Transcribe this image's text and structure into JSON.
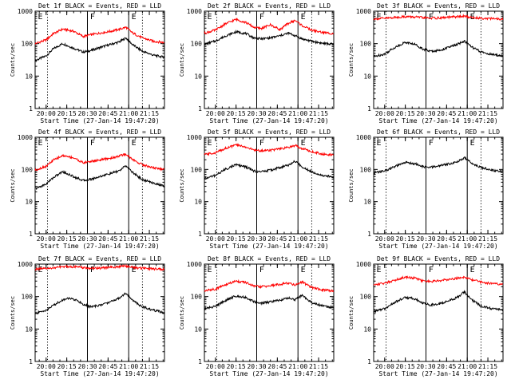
{
  "figure": {
    "x_axis_label": "Start Time (27-Jan-14 19:47:20)",
    "y_axis_label": "Counts/sec",
    "colors": {
      "events": "#000000",
      "lld": "#ff0000",
      "axes": "#000000"
    }
  },
  "chart_data": [
    {
      "type": "line",
      "title": "Det 1f BLACK = Events, RED = LLD",
      "xlim": [
        "19:52",
        "21:26"
      ],
      "ylim": [
        1,
        1000
      ],
      "yscale": "log",
      "grid": false,
      "legend": "none",
      "x_ticks": [
        "20:00",
        "20:15",
        "20:30",
        "20:45",
        "21:00",
        "21:15"
      ],
      "y_ticks": [
        "1",
        "10",
        "100",
        "1000"
      ],
      "dotted_lines": [
        "20:01",
        "21:10"
      ],
      "solid_lines": [
        "20:30",
        "21:00"
      ],
      "region_tags": [
        {
          "x": "19:54",
          "label": "E"
        },
        {
          "x": "20:32",
          "label": "F"
        },
        {
          "x": "21:02",
          "label": "E"
        }
      ],
      "x": [
        "19:52",
        "20:00",
        "20:05",
        "20:12",
        "20:20",
        "20:27",
        "20:33",
        "20:40",
        "20:47",
        "20:53",
        "20:58",
        "21:03",
        "21:10",
        "21:18",
        "21:26"
      ],
      "series": [
        {
          "name": "Events",
          "values": [
            30,
            42,
            68,
            100,
            72,
            55,
            62,
            78,
            95,
            112,
            150,
            92,
            58,
            44,
            38
          ]
        },
        {
          "name": "LLD",
          "values": [
            100,
            130,
            200,
            280,
            240,
            165,
            190,
            215,
            240,
            275,
            320,
            210,
            150,
            118,
            108
          ]
        }
      ]
    },
    {
      "type": "line",
      "title": "Det 2f BLACK = Events, RED = LLD",
      "xlim": [
        "19:52",
        "21:26"
      ],
      "ylim": [
        1,
        1000
      ],
      "yscale": "log",
      "grid": false,
      "legend": "none",
      "x_ticks": [
        "20:00",
        "20:15",
        "20:30",
        "20:45",
        "21:00",
        "21:15"
      ],
      "y_ticks": [
        "1",
        "10",
        "100",
        "1000"
      ],
      "dotted_lines": [
        "20:01",
        "21:10"
      ],
      "solid_lines": [
        "20:30",
        "21:00"
      ],
      "region_tags": [
        {
          "x": "19:54",
          "label": "E"
        },
        {
          "x": "20:32",
          "label": "F"
        },
        {
          "x": "21:02",
          "label": "E"
        }
      ],
      "x": [
        "19:52",
        "20:00",
        "20:07",
        "20:15",
        "20:22",
        "20:28",
        "20:33",
        "20:40",
        "20:47",
        "20:53",
        "20:58",
        "21:03",
        "21:10",
        "21:18",
        "21:26"
      ],
      "series": [
        {
          "name": "Events",
          "values": [
            95,
            120,
            170,
            230,
            205,
            150,
            140,
            150,
            175,
            210,
            175,
            140,
            118,
            102,
            95
          ]
        },
        {
          "name": "LLD",
          "values": [
            210,
            260,
            400,
            560,
            450,
            320,
            290,
            380,
            270,
            420,
            520,
            360,
            260,
            220,
            205
          ]
        }
      ]
    },
    {
      "type": "line",
      "title": "Det 3f BLACK = Events, RED = LLD",
      "xlim": [
        "19:52",
        "21:26"
      ],
      "ylim": [
        1,
        1000
      ],
      "yscale": "log",
      "grid": false,
      "legend": "none",
      "x_ticks": [
        "20:00",
        "20:15",
        "20:30",
        "20:45",
        "21:00",
        "21:15"
      ],
      "y_ticks": [
        "1",
        "10",
        "100",
        "1000"
      ],
      "dotted_lines": [
        "20:01",
        "21:10"
      ],
      "solid_lines": [
        "20:30",
        "21:00"
      ],
      "region_tags": [
        {
          "x": "19:54",
          "label": "E"
        },
        {
          "x": "20:32",
          "label": "F"
        },
        {
          "x": "21:02",
          "label": "E"
        }
      ],
      "x": [
        "19:52",
        "20:00",
        "20:07",
        "20:15",
        "20:22",
        "20:28",
        "20:33",
        "20:40",
        "20:47",
        "20:53",
        "20:58",
        "21:03",
        "21:10",
        "21:18",
        "21:26"
      ],
      "series": [
        {
          "name": "Events",
          "values": [
            40,
            48,
            75,
            110,
            95,
            68,
            58,
            62,
            78,
            95,
            120,
            80,
            55,
            46,
            42
          ]
        },
        {
          "name": "LLD",
          "values": [
            580,
            600,
            640,
            680,
            660,
            630,
            610,
            620,
            650,
            680,
            700,
            640,
            610,
            590,
            560
          ]
        }
      ]
    },
    {
      "type": "line",
      "title": "Det 4f BLACK = Events, RED = LLD",
      "xlim": [
        "19:52",
        "21:26"
      ],
      "ylim": [
        1,
        1000
      ],
      "yscale": "log",
      "grid": false,
      "legend": "none",
      "x_ticks": [
        "20:00",
        "20:15",
        "20:30",
        "20:45",
        "21:00",
        "21:15"
      ],
      "y_ticks": [
        "1",
        "10",
        "100",
        "1000"
      ],
      "dotted_lines": [
        "20:01",
        "21:10"
      ],
      "solid_lines": [
        "20:30",
        "21:00"
      ],
      "region_tags": [
        {
          "x": "19:54",
          "label": "E"
        },
        {
          "x": "20:32",
          "label": "F"
        },
        {
          "x": "21:02",
          "label": "E"
        }
      ],
      "x": [
        "19:52",
        "20:00",
        "20:05",
        "20:12",
        "20:20",
        "20:27",
        "20:33",
        "20:40",
        "20:47",
        "20:53",
        "20:58",
        "21:03",
        "21:10",
        "21:18",
        "21:26"
      ],
      "series": [
        {
          "name": "Events",
          "values": [
            25,
            35,
            55,
            85,
            60,
            45,
            50,
            62,
            75,
            90,
            130,
            80,
            48,
            38,
            30
          ]
        },
        {
          "name": "LLD",
          "values": [
            95,
            125,
            190,
            270,
            230,
            160,
            180,
            200,
            225,
            260,
            300,
            200,
            140,
            112,
            100
          ]
        }
      ]
    },
    {
      "type": "line",
      "title": "Det 5f BLACK = Events, RED = LLD",
      "xlim": [
        "19:52",
        "21:26"
      ],
      "ylim": [
        1,
        1000
      ],
      "yscale": "log",
      "grid": false,
      "legend": "none",
      "x_ticks": [
        "20:00",
        "20:15",
        "20:30",
        "20:45",
        "21:00",
        "21:15"
      ],
      "y_ticks": [
        "1",
        "10",
        "100",
        "1000"
      ],
      "dotted_lines": [
        "20:01",
        "21:10"
      ],
      "solid_lines": [
        "20:30",
        "21:00"
      ],
      "region_tags": [
        {
          "x": "19:54",
          "label": "E"
        },
        {
          "x": "20:32",
          "label": "F"
        },
        {
          "x": "21:02",
          "label": "E"
        }
      ],
      "x": [
        "19:52",
        "20:00",
        "20:07",
        "20:15",
        "20:22",
        "20:28",
        "20:33",
        "20:40",
        "20:47",
        "20:53",
        "20:58",
        "21:03",
        "21:10",
        "21:18",
        "21:26"
      ],
      "series": [
        {
          "name": "Events",
          "values": [
            52,
            65,
            100,
            140,
            120,
            90,
            85,
            95,
            115,
            135,
            180,
            120,
            85,
            65,
            58
          ]
        },
        {
          "name": "LLD",
          "values": [
            290,
            330,
            450,
            580,
            500,
            400,
            380,
            400,
            430,
            480,
            560,
            450,
            360,
            300,
            280
          ]
        }
      ]
    },
    {
      "type": "line",
      "title": "Det 6f BLACK = Events, RED = LLD",
      "xlim": [
        "19:52",
        "21:26"
      ],
      "ylim": [
        1,
        1000
      ],
      "yscale": "log",
      "grid": false,
      "legend": "none",
      "x_ticks": [
        "20:00",
        "20:15",
        "20:30",
        "20:45",
        "21:00",
        "21:15"
      ],
      "y_ticks": [
        "1",
        "10",
        "100",
        "1000"
      ],
      "dotted_lines": [
        "20:01",
        "21:10"
      ],
      "solid_lines": [
        "20:30",
        "21:00"
      ],
      "region_tags": [
        {
          "x": "19:54",
          "label": "E"
        },
        {
          "x": "20:32",
          "label": "F"
        },
        {
          "x": "21:02",
          "label": "E"
        }
      ],
      "x": [
        "19:52",
        "20:00",
        "20:07",
        "20:15",
        "20:22",
        "20:28",
        "20:33",
        "20:40",
        "20:47",
        "20:53",
        "20:58",
        "21:03",
        "21:10",
        "21:18",
        "21:26"
      ],
      "series": [
        {
          "name": "Events",
          "values": [
            78,
            90,
            120,
            165,
            150,
            120,
            115,
            130,
            150,
            175,
            230,
            160,
            115,
            95,
            85
          ]
        }
      ]
    },
    {
      "type": "line",
      "title": "Det 7f BLACK = Events, RED = LLD",
      "xlim": [
        "19:52",
        "21:26"
      ],
      "ylim": [
        1,
        1000
      ],
      "yscale": "log",
      "grid": false,
      "legend": "none",
      "x_ticks": [
        "20:00",
        "20:15",
        "20:30",
        "20:45",
        "21:00",
        "21:15"
      ],
      "y_ticks": [
        "1",
        "10",
        "100",
        "1000"
      ],
      "dotted_lines": [
        "20:01",
        "21:10"
      ],
      "solid_lines": [
        "20:30",
        "21:00"
      ],
      "region_tags": [
        {
          "x": "19:54",
          "label": "E"
        },
        {
          "x": "20:32",
          "label": "F"
        },
        {
          "x": "21:02",
          "label": "E"
        }
      ],
      "x": [
        "19:52",
        "20:00",
        "20:07",
        "20:15",
        "20:22",
        "20:28",
        "20:33",
        "20:40",
        "20:47",
        "20:53",
        "20:58",
        "21:03",
        "21:10",
        "21:18",
        "21:26"
      ],
      "series": [
        {
          "name": "Events",
          "values": [
            30,
            38,
            60,
            90,
            78,
            55,
            48,
            55,
            70,
            90,
            130,
            75,
            48,
            38,
            32
          ]
        },
        {
          "name": "LLD",
          "values": [
            700,
            720,
            780,
            850,
            820,
            760,
            740,
            760,
            800,
            840,
            880,
            800,
            740,
            710,
            690
          ]
        }
      ]
    },
    {
      "type": "line",
      "title": "Det 8f BLACK = Events, RED = LLD",
      "xlim": [
        "19:52",
        "21:26"
      ],
      "ylim": [
        1,
        1000
      ],
      "yscale": "log",
      "grid": false,
      "legend": "none",
      "x_ticks": [
        "20:00",
        "20:15",
        "20:30",
        "20:45",
        "21:00",
        "21:15"
      ],
      "y_ticks": [
        "1",
        "10",
        "100",
        "1000"
      ],
      "dotted_lines": [
        "20:01",
        "21:10"
      ],
      "solid_lines": [
        "20:30",
        "21:00"
      ],
      "region_tags": [
        {
          "x": "19:54",
          "label": "E"
        },
        {
          "x": "20:32",
          "label": "F"
        },
        {
          "x": "21:02",
          "label": "E"
        }
      ],
      "x": [
        "19:52",
        "20:00",
        "20:07",
        "20:15",
        "20:22",
        "20:28",
        "20:33",
        "20:40",
        "20:47",
        "20:53",
        "20:58",
        "21:03",
        "21:10",
        "21:18",
        "21:26"
      ],
      "series": [
        {
          "name": "Events",
          "values": [
            42,
            50,
            75,
            105,
            95,
            70,
            62,
            68,
            78,
            90,
            80,
            110,
            65,
            52,
            45
          ]
        },
        {
          "name": "LLD",
          "values": [
            150,
            170,
            230,
            300,
            270,
            210,
            200,
            215,
            240,
            260,
            230,
            280,
            190,
            160,
            148
          ]
        }
      ]
    },
    {
      "type": "line",
      "title": "Det 9f BLACK = Events, RED = LLD",
      "xlim": [
        "19:52",
        "21:26"
      ],
      "ylim": [
        1,
        1000
      ],
      "yscale": "log",
      "grid": false,
      "legend": "none",
      "x_ticks": [
        "20:00",
        "20:15",
        "20:30",
        "20:45",
        "21:00",
        "21:15"
      ],
      "y_ticks": [
        "1",
        "10",
        "100",
        "1000"
      ],
      "dotted_lines": [
        "20:01",
        "21:10"
      ],
      "solid_lines": [
        "20:30",
        "21:00"
      ],
      "region_tags": [
        {
          "x": "19:54",
          "label": "E"
        },
        {
          "x": "20:32",
          "label": "F"
        },
        {
          "x": "21:02",
          "label": "E"
        }
      ],
      "x": [
        "19:52",
        "20:00",
        "20:07",
        "20:15",
        "20:22",
        "20:28",
        "20:33",
        "20:40",
        "20:47",
        "20:53",
        "20:58",
        "21:03",
        "21:10",
        "21:18",
        "21:26"
      ],
      "series": [
        {
          "name": "Events",
          "values": [
            35,
            42,
            65,
            95,
            85,
            62,
            55,
            60,
            75,
            95,
            140,
            80,
            52,
            42,
            38
          ]
        },
        {
          "name": "LLD",
          "values": [
            230,
            260,
            320,
            400,
            370,
            300,
            290,
            310,
            340,
            370,
            400,
            330,
            280,
            250,
            235
          ]
        }
      ]
    }
  ]
}
